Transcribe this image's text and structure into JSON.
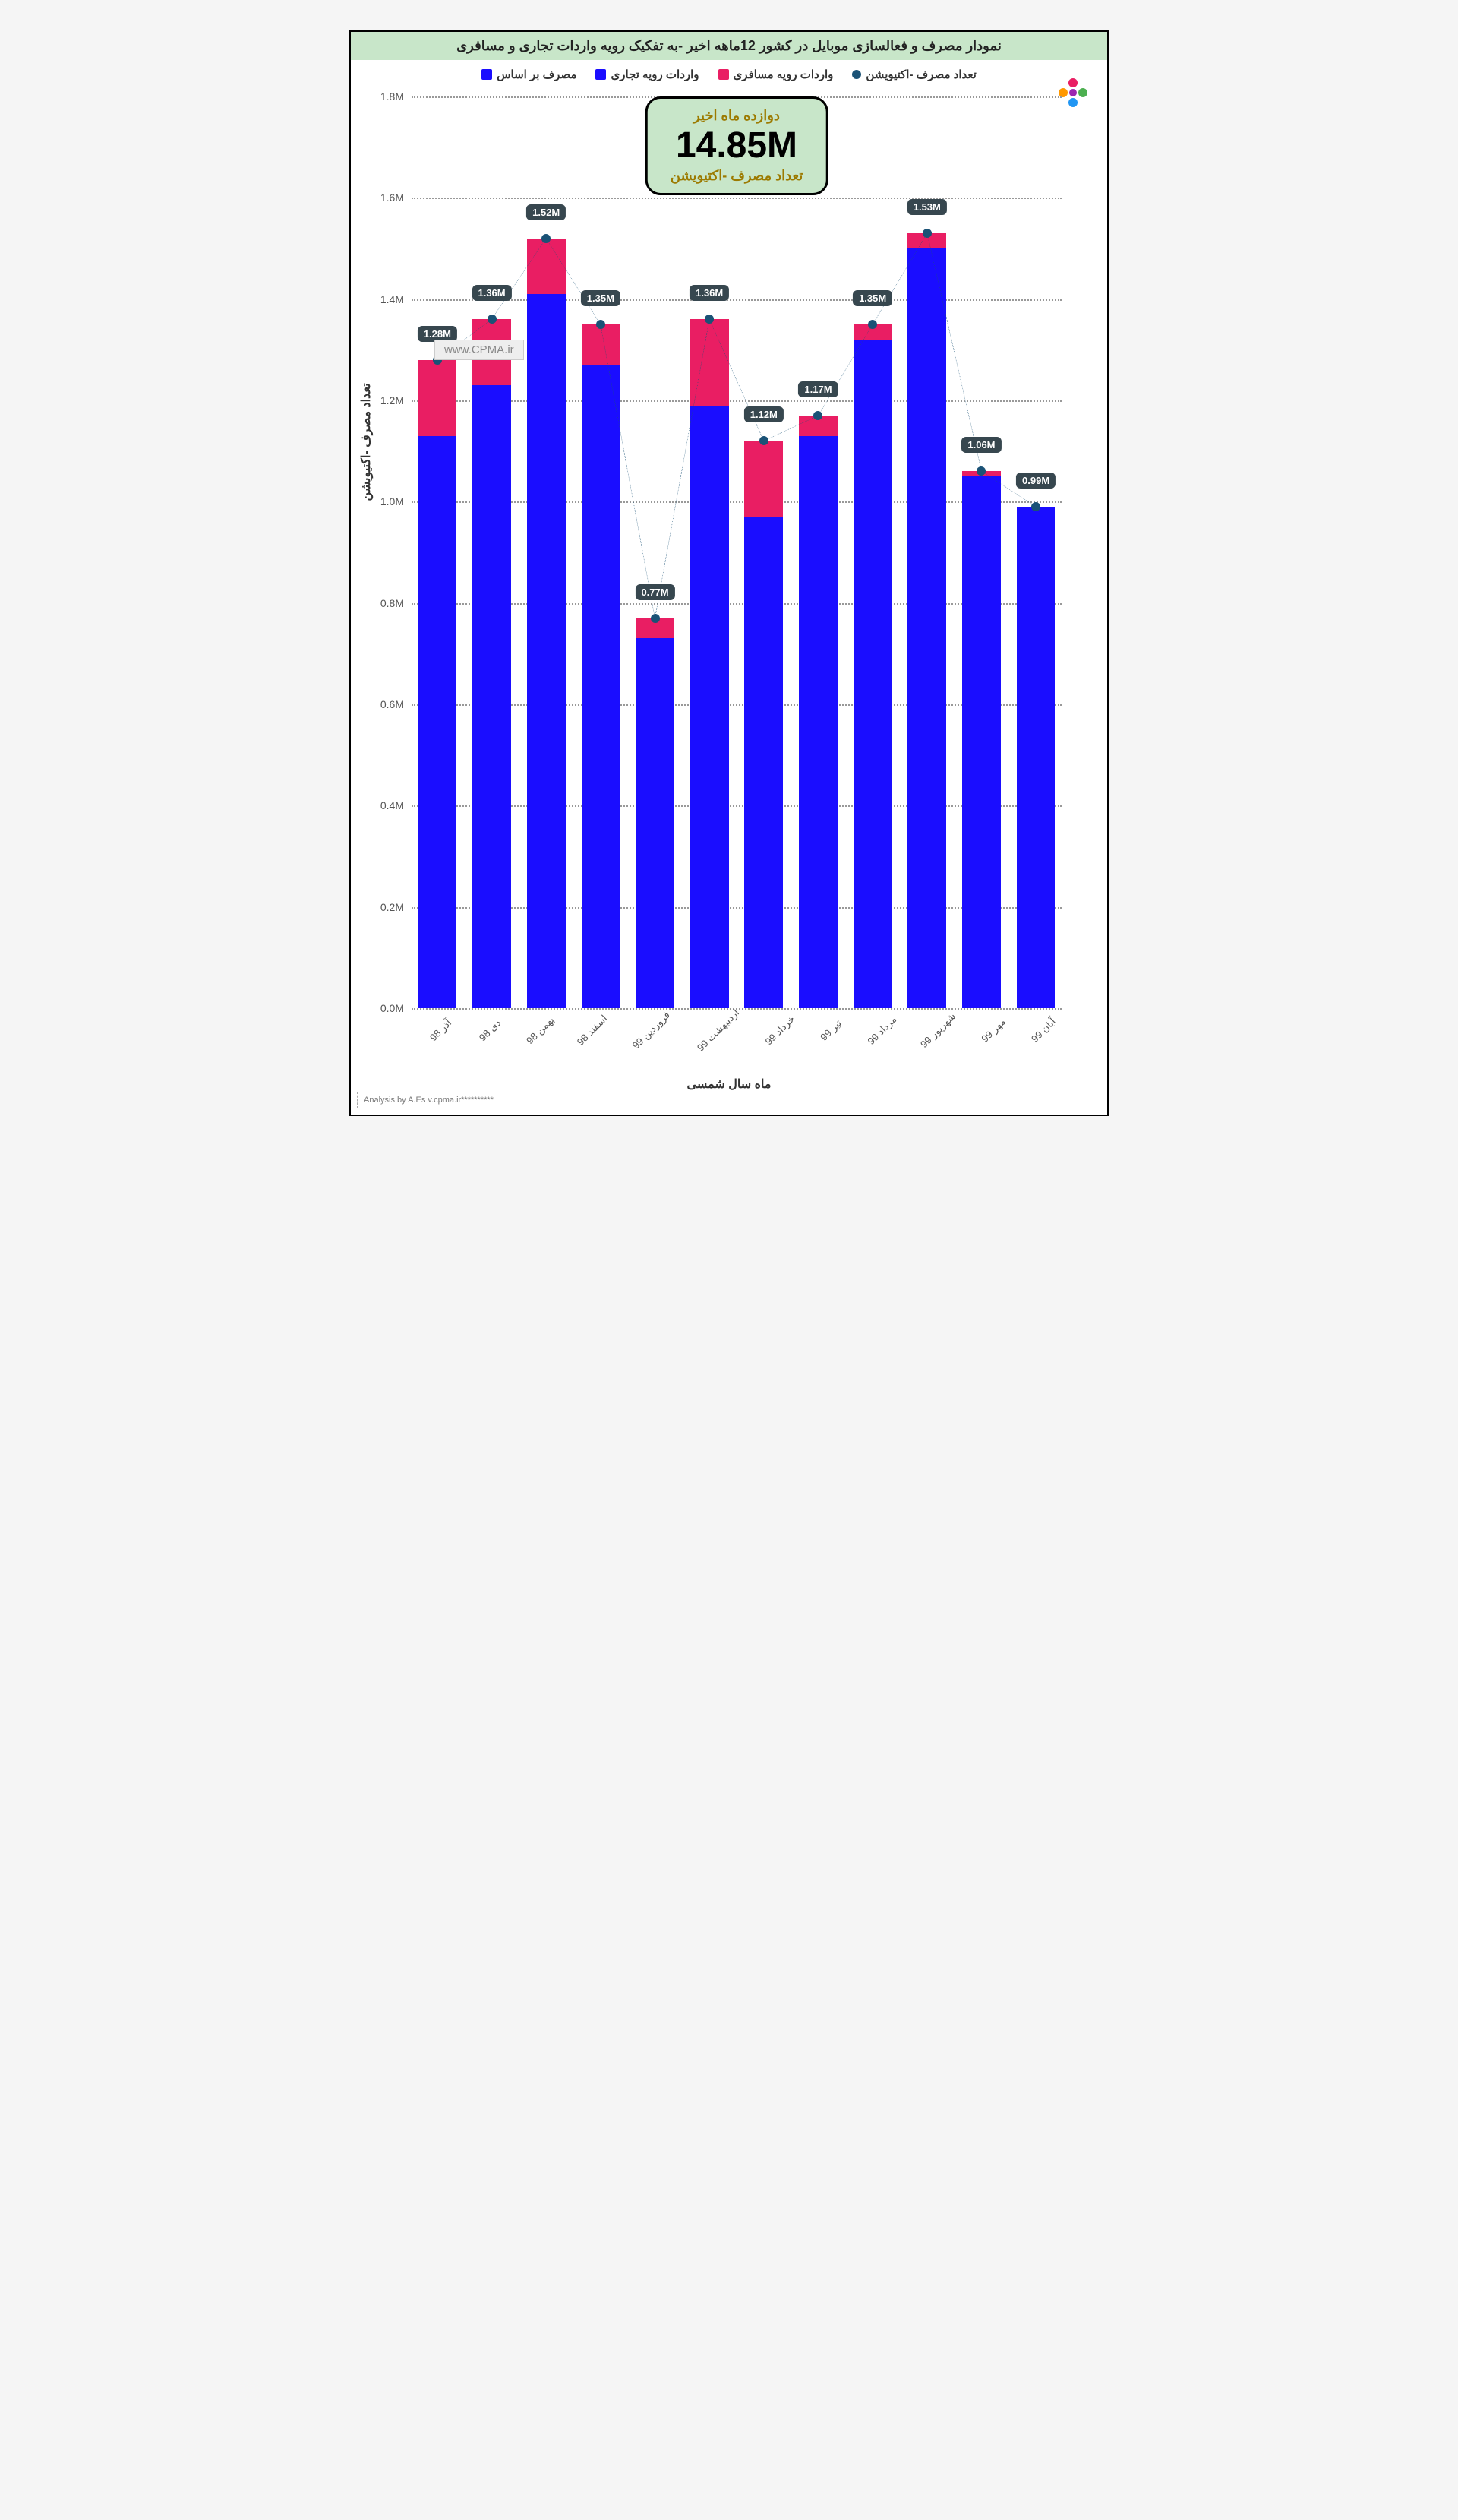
{
  "title": "نمودار مصرف و فعالسازی موبایل در کشور 12ماهه اخیر -به تفکیک رویه واردات تجاری و مسافری",
  "legend": [
    {
      "label": "تعداد مصرف -اکتیویشن",
      "color": "#1a5276",
      "type": "line"
    },
    {
      "label": "واردات رویه مسافری",
      "color": "#e91e63",
      "type": "box"
    },
    {
      "label": "واردات رویه تجاری",
      "color": "#1a0dff",
      "type": "box"
    },
    {
      "label": "مصرف بر اساس",
      "color": "#1a0dff",
      "type": "box"
    }
  ],
  "summary": {
    "top": "دوازده ماه اخیر",
    "value": "14.85M",
    "bottom": "تعداد مصرف -اکتیویشن"
  },
  "watermark": "www.CPMA.ir",
  "attribution": "Analysis by A.Es\nv.cpma.ir**********",
  "chart": {
    "type": "stacked-bar-with-line",
    "ylim": [
      0,
      1.8
    ],
    "yticks": [
      0.0,
      0.2,
      0.4,
      0.6,
      0.8,
      1.0,
      1.2,
      1.4,
      1.6,
      1.8
    ],
    "ytick_labels": [
      "0.0M",
      "0.2M",
      "0.4M",
      "0.6M",
      "0.8M",
      "1.0M",
      "1.2M",
      "1.4M",
      "1.6M",
      "1.8M"
    ],
    "ylabel": "تعداد مصرف -اکتیویشن",
    "xlabel": "ماه سال شمسی",
    "categories": [
      "آذر 98",
      "دی 98",
      "بهمن 98",
      "اسفند 98",
      "فروردین 99",
      "اردیبهشت 99",
      "خرداد 99",
      "تیر 99",
      "مرداد 99",
      "شهریور 99",
      "مهر 99",
      "آبان 99"
    ],
    "blue_values": [
      1.13,
      1.23,
      1.41,
      1.27,
      0.73,
      1.19,
      0.97,
      1.13,
      1.32,
      1.5,
      1.05,
      0.99
    ],
    "pink_values": [
      0.15,
      0.13,
      0.11,
      0.08,
      0.04,
      0.17,
      0.15,
      0.04,
      0.03,
      0.03,
      0.01,
      0.0
    ],
    "line_values": [
      1.28,
      1.36,
      1.52,
      1.35,
      0.77,
      1.36,
      1.12,
      1.17,
      1.35,
      1.53,
      1.06,
      0.99
    ],
    "labels": [
      "1.28M",
      "1.36M",
      "1.52M",
      "1.35M",
      "0.77M",
      "1.36M",
      "1.12M",
      "1.17M",
      "1.35M",
      "1.53M",
      "1.06M",
      "0.99M"
    ],
    "colors": {
      "blue": "#1a0dff",
      "pink": "#e91e63",
      "line": "#1a5276",
      "grid": "#9e9e9e",
      "label_bg": "#37474f",
      "text": "#555555",
      "background": "#ffffff"
    },
    "bar_width_ratio": 0.85,
    "line_style": "dotted",
    "line_width": 4,
    "marker_size": 12,
    "label_fontsize": 13,
    "axis_fontsize": 14,
    "title_fontsize": 18
  }
}
